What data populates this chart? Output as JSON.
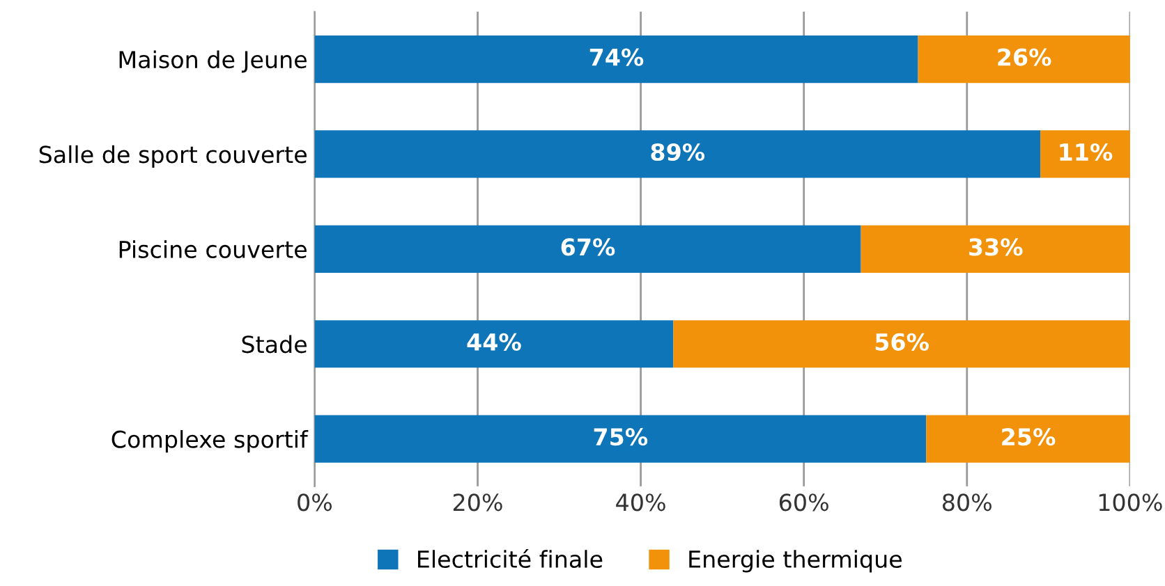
{
  "chart_data": {
    "type": "bar",
    "orientation": "horizontal",
    "stacked": true,
    "categories": [
      "Maison de Jeune",
      "Salle de sport couverte",
      "Piscine couverte",
      "Stade",
      "Complexe sportif"
    ],
    "series": [
      {
        "name": "Electricité finale",
        "color": "#0e75b9",
        "values": [
          74,
          89,
          67,
          44,
          75
        ],
        "value_labels": [
          "74%",
          "89%",
          "67%",
          "44%",
          "75%"
        ]
      },
      {
        "name": "Energie thermique",
        "color": "#f2920a",
        "values": [
          26,
          11,
          33,
          56,
          25
        ],
        "value_labels": [
          "26%",
          "11%",
          "33%",
          "56%",
          "25%"
        ]
      }
    ],
    "xlim": [
      0,
      100
    ],
    "xticks": [
      {
        "value": 0,
        "label": "0%"
      },
      {
        "value": 20,
        "label": "20%"
      },
      {
        "value": 40,
        "label": "40%"
      },
      {
        "value": 60,
        "label": "60%"
      },
      {
        "value": 80,
        "label": "80%"
      },
      {
        "value": 100,
        "label": "100%"
      }
    ],
    "grid": "x",
    "legend": "bottom"
  }
}
